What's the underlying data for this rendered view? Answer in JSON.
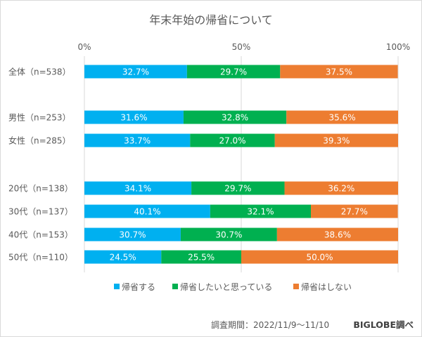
{
  "chart_data": {
    "type": "bar",
    "orientation": "horizontal",
    "stacked": true,
    "title": "年末年始の帰省について",
    "categories": [
      "全体（n=538）",
      "男性（n=253）",
      "女性（n=285）",
      "20代（n=138）",
      "30代（n=137）",
      "40代（n=153）",
      "50代（n=110）"
    ],
    "series": [
      {
        "name": "帰省する",
        "color": "#00b0f0",
        "values": [
          32.7,
          31.6,
          33.7,
          34.1,
          40.1,
          30.7,
          24.5
        ]
      },
      {
        "name": "帰省したいと思っている",
        "color": "#00b050",
        "values": [
          29.7,
          32.8,
          27.0,
          29.7,
          32.1,
          30.7,
          25.5
        ]
      },
      {
        "name": "帰省はしない",
        "color": "#ed7d31",
        "values": [
          37.5,
          35.6,
          39.3,
          36.2,
          27.7,
          38.6,
          50.0
        ]
      }
    ],
    "xlim": [
      0,
      100
    ],
    "x_ticks": [
      "0%",
      "50%",
      "100%"
    ],
    "grid": true,
    "legend_position": "bottom",
    "data_labels": true
  },
  "footer": {
    "period": "調査期間：2022/11/9～11/10",
    "source": "BIGLOBE調べ"
  }
}
